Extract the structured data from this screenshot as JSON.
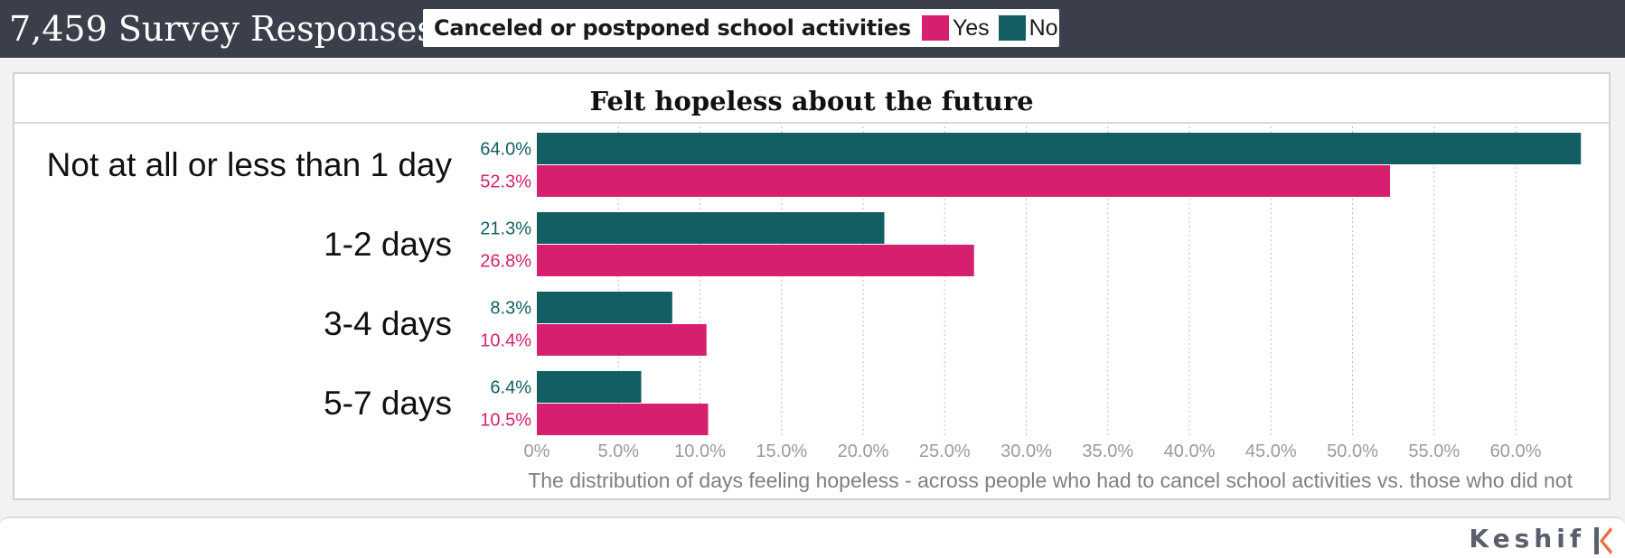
{
  "header": {
    "title": "7,459 Survey Responses"
  },
  "legend": {
    "title": "Canceled or postponed school activities",
    "items": [
      {
        "label": "Yes",
        "color": "#d61f6e"
      },
      {
        "label": "No",
        "color": "#135e63"
      }
    ]
  },
  "footer": {
    "brand": "Keshif",
    "logo_icon": "keshif-logo-icon"
  },
  "chart_data": {
    "type": "bar",
    "orientation": "horizontal",
    "title": "Felt hopeless about the future",
    "xlabel": "The distribution of days feeling hopeless - across people who had to cancel school activities vs. those who did not",
    "ylabel": "",
    "categories": [
      "Not at all or less than 1 day",
      "1-2 days",
      "3-4 days",
      "5-7 days"
    ],
    "series": [
      {
        "name": "No",
        "color": "#135e63",
        "values": [
          64.0,
          21.3,
          8.3,
          6.4
        ],
        "value_labels": [
          "64.0%",
          "21.3%",
          "8.3%",
          "6.4%"
        ]
      },
      {
        "name": "Yes",
        "color": "#d61f6e",
        "values": [
          52.3,
          26.8,
          10.4,
          10.5
        ],
        "value_labels": [
          "52.3%",
          "26.8%",
          "10.4%",
          "10.5%"
        ]
      }
    ],
    "xticks": [
      0,
      5,
      10,
      15,
      20,
      25,
      30,
      35,
      40,
      45,
      50,
      55,
      60
    ],
    "xtick_labels": [
      "0%",
      "5.0%",
      "10.0%",
      "15.0%",
      "20.0%",
      "25.0%",
      "30.0%",
      "35.0%",
      "40.0%",
      "45.0%",
      "50.0%",
      "55.0%",
      "60.0%"
    ],
    "xlim": [
      0,
      64
    ],
    "grid": true,
    "legend_position": "top"
  }
}
